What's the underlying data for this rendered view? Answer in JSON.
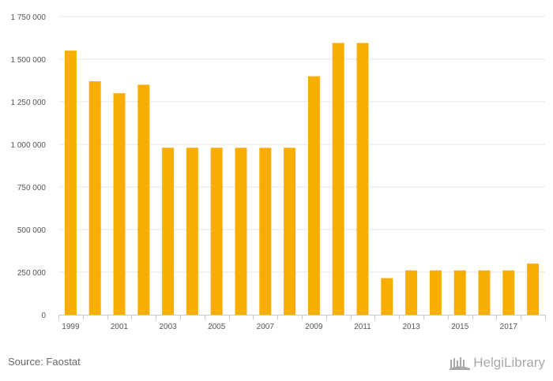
{
  "chart_data": {
    "type": "bar",
    "categories": [
      "1999",
      "2000",
      "2001",
      "2002",
      "2003",
      "2004",
      "2005",
      "2006",
      "2007",
      "2008",
      "2009",
      "2010",
      "2011",
      "2012",
      "2013",
      "2014",
      "2015",
      "2016",
      "2017",
      "2018"
    ],
    "x_tick_labels": [
      "1999",
      "2001",
      "2003",
      "2005",
      "2007",
      "2009",
      "2011",
      "2013",
      "2015",
      "2017"
    ],
    "values": [
      1550000,
      1370000,
      1300000,
      1350000,
      980000,
      980000,
      980000,
      980000,
      980000,
      980000,
      1400000,
      1595000,
      1595000,
      215000,
      260000,
      260000,
      260000,
      260000,
      260000,
      300000
    ],
    "ylim": [
      0,
      1750000
    ],
    "y_ticks": [
      0,
      250000,
      500000,
      750000,
      1000000,
      1250000,
      1500000,
      1750000
    ],
    "y_tick_labels": [
      "0",
      "250 000",
      "500 000",
      "750 000",
      "1 000 000",
      "1 250 000",
      "1 500 000",
      "1 750 000"
    ],
    "bar_color": "#f7ae00",
    "grid": true,
    "title": "",
    "xlabel": "",
    "ylabel": ""
  },
  "footer": {
    "source": "Source: Faostat",
    "brand": "HelgiLibrary"
  }
}
